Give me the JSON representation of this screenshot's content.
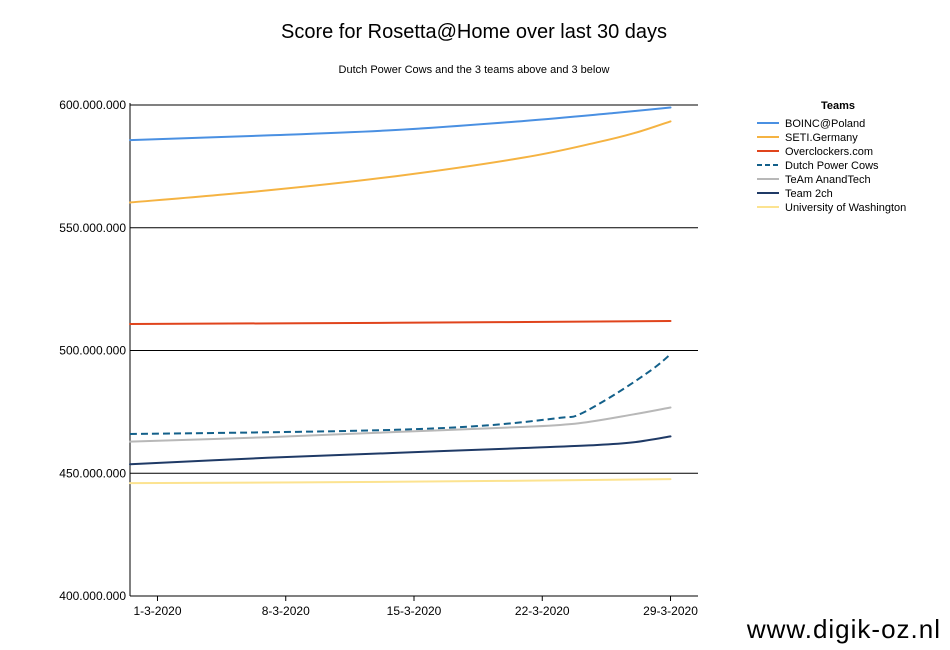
{
  "chart_data": {
    "type": "line",
    "title": "Score for Rosetta@Home over last 30 days",
    "subtitle": "Dutch Power Cows and the 3 teams above and 3 below",
    "xlabel": "",
    "ylabel": "",
    "x_ticks": [
      "1-3-2020",
      "8-3-2020",
      "15-3-2020",
      "22-3-2020",
      "29-3-2020"
    ],
    "x_tick_days": [
      1,
      8,
      15,
      22,
      29
    ],
    "xlim": [
      -0.5,
      30.5
    ],
    "ylim": [
      400000000,
      600000000
    ],
    "y_ticks": [
      400000000,
      450000000,
      500000000,
      550000000,
      600000000
    ],
    "y_tick_labels": [
      "400.000.000",
      "450.000.000",
      "500.000.000",
      "550.000.000",
      "600.000.000"
    ],
    "grid": "horizontal",
    "legend": {
      "title": "Teams",
      "placement": "right"
    },
    "series": [
      {
        "name": "BOINC@Poland",
        "color": "#4a90e2",
        "dashed": false,
        "points": [
          [
            -0.5,
            585700000
          ],
          [
            7,
            587600000
          ],
          [
            14,
            589800000
          ],
          [
            21,
            593500000
          ],
          [
            26,
            596800000
          ],
          [
            29,
            599000000
          ]
        ]
      },
      {
        "name": "SETI.Germany",
        "color": "#f5b342",
        "dashed": false,
        "points": [
          [
            -0.5,
            560300000
          ],
          [
            7,
            565200000
          ],
          [
            14,
            571000000
          ],
          [
            21,
            578600000
          ],
          [
            25,
            584800000
          ],
          [
            27,
            588500000
          ],
          [
            29,
            593300000
          ]
        ]
      },
      {
        "name": "Overclockers.com",
        "color": "#e0441c",
        "dashed": false,
        "points": [
          [
            -0.5,
            510800000
          ],
          [
            14,
            511300000
          ],
          [
            29,
            512000000
          ]
        ]
      },
      {
        "name": "Dutch Power Cows",
        "color": "#13608a",
        "dashed": true,
        "points": [
          [
            -0.5,
            466000000
          ],
          [
            7,
            466700000
          ],
          [
            14,
            467700000
          ],
          [
            19,
            469500000
          ],
          [
            23,
            472600000
          ],
          [
            24,
            473900000
          ],
          [
            26,
            482300000
          ],
          [
            28,
            492300000
          ],
          [
            29,
            498500000
          ]
        ]
      },
      {
        "name": "TeAm AnandTech",
        "color": "#b8b8b8",
        "dashed": false,
        "points": [
          [
            -0.5,
            462900000
          ],
          [
            7,
            464700000
          ],
          [
            14,
            466800000
          ],
          [
            21,
            468900000
          ],
          [
            24,
            470400000
          ],
          [
            27,
            474000000
          ],
          [
            29,
            476800000
          ]
        ]
      },
      {
        "name": "Team 2ch",
        "color": "#1f3a66",
        "dashed": false,
        "points": [
          [
            -0.5,
            453700000
          ],
          [
            7,
            456300000
          ],
          [
            14,
            458300000
          ],
          [
            21,
            460300000
          ],
          [
            25,
            461500000
          ],
          [
            27,
            462600000
          ],
          [
            29,
            465000000
          ]
        ]
      },
      {
        "name": "University of Washington",
        "color": "#fce390",
        "dashed": false,
        "points": [
          [
            -0.5,
            446000000
          ],
          [
            14,
            446500000
          ],
          [
            29,
            447600000
          ]
        ]
      }
    ]
  },
  "watermark": "www.digik-oz.nl"
}
